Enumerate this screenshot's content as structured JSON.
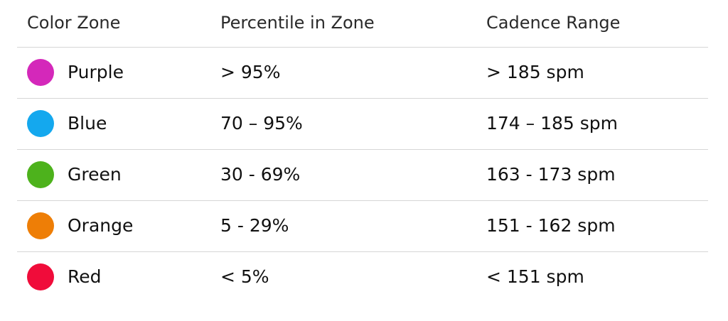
{
  "headers": {
    "color_zone": "Color Zone",
    "percentile": "Percentile in Zone",
    "cadence": "Cadence Range"
  },
  "rows": [
    {
      "zone": "Purple",
      "color": "#D428BA",
      "percentile": "> 95%",
      "cadence": "> 185 spm"
    },
    {
      "zone": "Blue",
      "color": "#14A8EE",
      "percentile": "70 – 95%",
      "cadence": "174 – 185 spm"
    },
    {
      "zone": "Green",
      "color": "#4DB21C",
      "percentile": "30 - 69%",
      "cadence": "163 - 173 spm"
    },
    {
      "zone": "Orange",
      "color": "#EE7E06",
      "percentile": "5 - 29%",
      "cadence": "151 - 162 spm"
    },
    {
      "zone": "Red",
      "color": "#F00C3A",
      "percentile": "< 5%",
      "cadence": "< 151 spm"
    }
  ]
}
